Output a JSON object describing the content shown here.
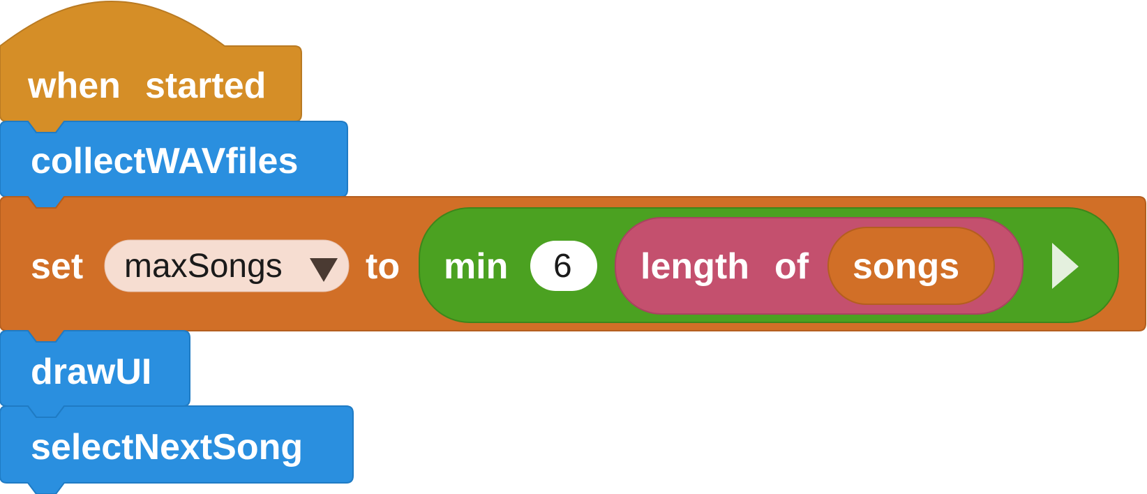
{
  "colors": {
    "hat_block": "#d58e27",
    "procedure_call": "#2a8fdf",
    "set_block": "#d16f27",
    "min_block": "#4ba121",
    "length_block": "#c4506e",
    "variable_reporter": "#d16f27",
    "dropdown_field": "#f6ddd1",
    "number_field": "#ffffff"
  },
  "script": {
    "hat": {
      "word1": "when",
      "word2": "started"
    },
    "calls": {
      "collect": "collectWAVfiles",
      "draw": "drawUI",
      "select_next": "selectNextSong"
    },
    "set_block": {
      "keyword": "set",
      "variable": "maxSongs",
      "dropdown_icon": "triangle-down-icon",
      "to_word": "to",
      "min_block": {
        "label": "min",
        "number": "6",
        "length_block": {
          "word1": "length",
          "word2": "of",
          "variable": "songs"
        },
        "expand_icon": "triangle-right-icon"
      }
    }
  }
}
